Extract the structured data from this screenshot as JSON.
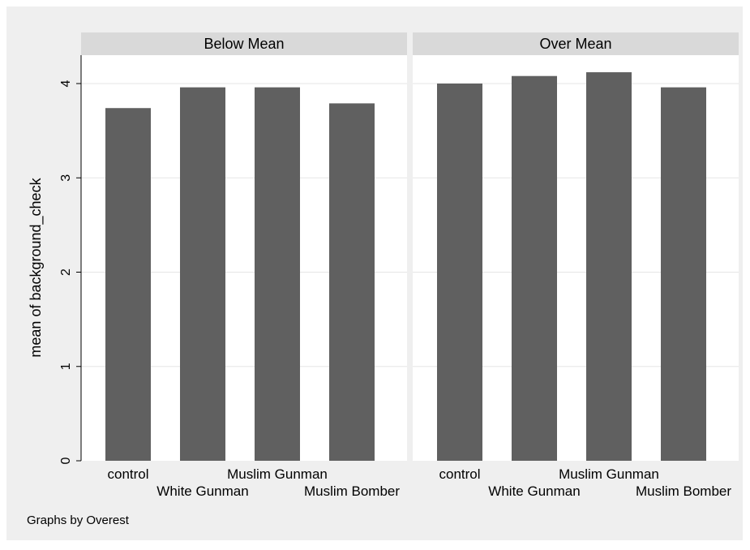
{
  "chart_data": {
    "type": "bar",
    "layout": "two panels side by side",
    "ylabel": "mean of background_check",
    "ylim": [
      0,
      4.3
    ],
    "yticks": [
      0,
      1,
      2,
      3,
      4
    ],
    "categories": [
      "control",
      "White Gunman",
      "Muslim Gunman",
      "Muslim Bomber"
    ],
    "grid": true,
    "panels": [
      {
        "title": "Below Mean",
        "values": [
          3.74,
          3.96,
          3.96,
          3.79
        ]
      },
      {
        "title": "Over Mean",
        "values": [
          4.0,
          4.08,
          4.12,
          3.96
        ]
      }
    ],
    "note": "Graphs by Overest",
    "colors": {
      "bar": "#606060",
      "outer_background": "#efefef",
      "plot_background": "#ffffff",
      "strip": "#d9d9d9",
      "grid": "#e5e5e5"
    }
  }
}
